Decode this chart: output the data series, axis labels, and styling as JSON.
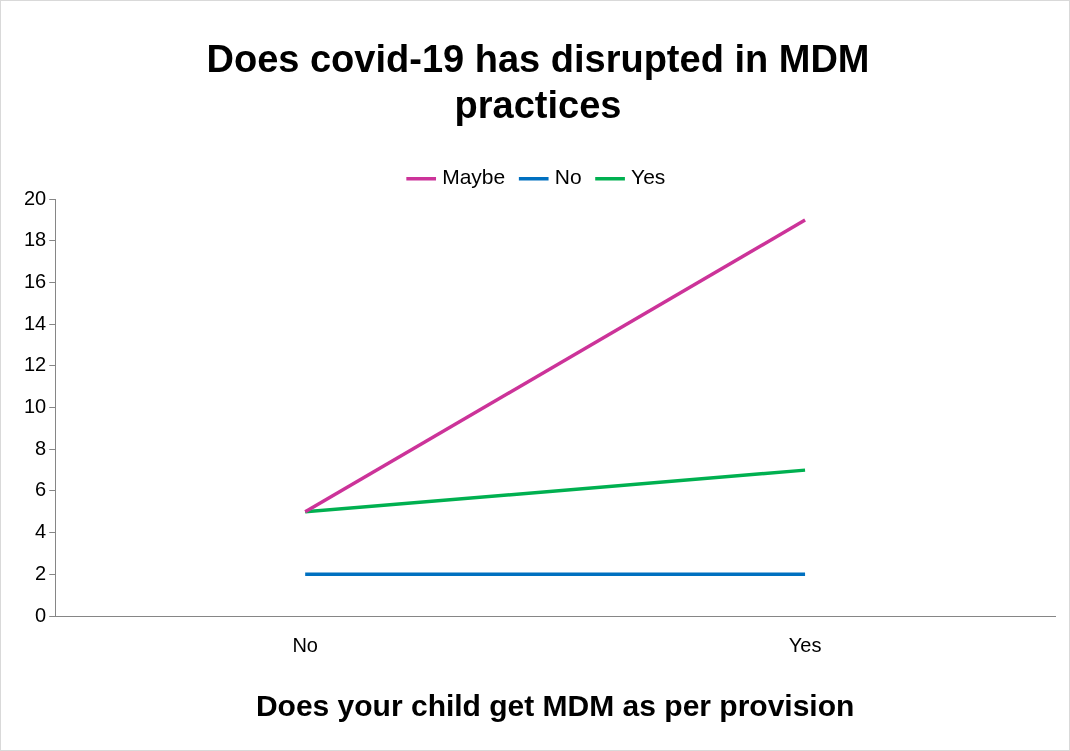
{
  "chart_data": {
    "type": "line",
    "title": "Does covid-19 has disrupted in MDM practices",
    "xlabel": "Does your child get MDM as per provision",
    "categories": [
      "No",
      "Yes"
    ],
    "series": [
      {
        "name": "Maybe",
        "color": "#cc3399",
        "values": [
          5,
          19
        ]
      },
      {
        "name": "No",
        "color": "#0070c0",
        "values": [
          2,
          2
        ]
      },
      {
        "name": "Yes",
        "color": "#00b050",
        "values": [
          5,
          7
        ]
      }
    ],
    "ylim": [
      0,
      20
    ],
    "yticks": [
      0,
      2,
      4,
      6,
      8,
      10,
      12,
      14,
      16,
      18,
      20
    ],
    "grid": false,
    "legend": "top",
    "marker": "none",
    "line_style": "solid"
  }
}
